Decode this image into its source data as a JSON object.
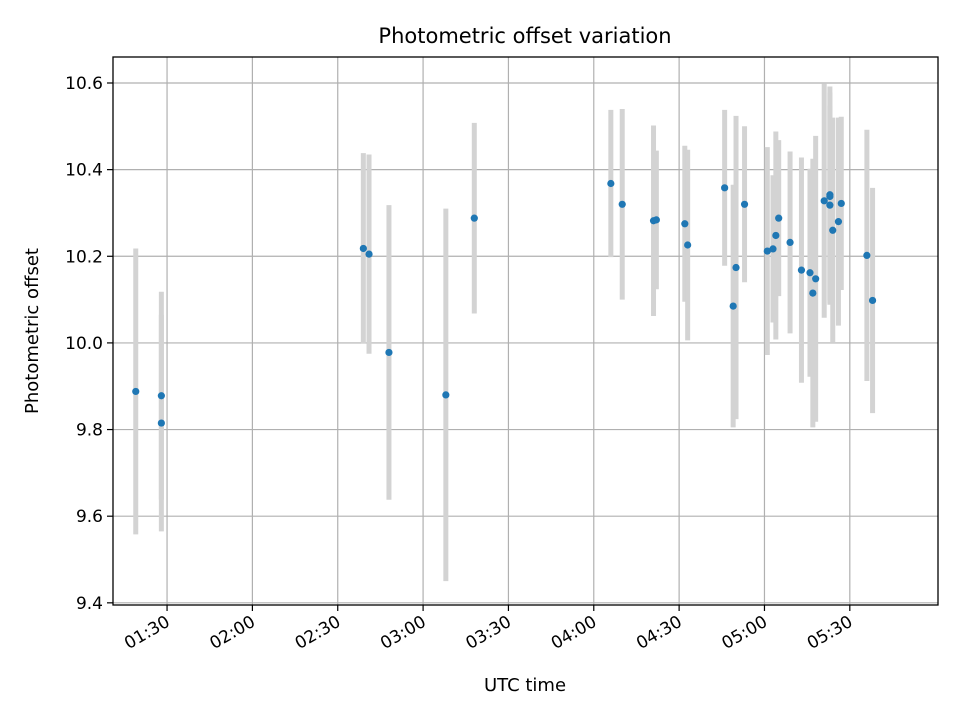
{
  "chart_data": {
    "type": "scatter",
    "title": "Photometric offset variation",
    "xlabel": "UTC time",
    "ylabel": "Photometric offset",
    "x_ticks": [
      "01:30",
      "02:00",
      "02:30",
      "03:00",
      "03:30",
      "04:00",
      "04:30",
      "05:00",
      "05:30"
    ],
    "y_ticks": [
      "9.4",
      "9.6",
      "9.8",
      "10.0",
      "10.2",
      "10.4",
      "10.6"
    ],
    "xlim": [
      "01:11",
      "06:01"
    ],
    "ylim": [
      9.395,
      10.66
    ],
    "grid": true,
    "colors": {
      "marker": "#1f77b4",
      "errorbar": "#d3d3d3",
      "grid": "#b0b0b0"
    },
    "series": [
      {
        "points": [
          {
            "x": "01:19",
            "y": 9.888,
            "yerr": 0.33
          },
          {
            "x": "01:28",
            "y": 9.878,
            "yerr": 0.24
          },
          {
            "x": "01:28",
            "y": 9.815,
            "yerr": 0.25
          },
          {
            "x": "02:39",
            "y": 10.218,
            "yerr": 0.22
          },
          {
            "x": "02:41",
            "y": 10.205,
            "yerr": 0.23
          },
          {
            "x": "02:48",
            "y": 9.978,
            "yerr": 0.34
          },
          {
            "x": "03:08",
            "y": 9.88,
            "yerr": 0.43
          },
          {
            "x": "03:18",
            "y": 10.288,
            "yerr": 0.22
          },
          {
            "x": "04:06",
            "y": 10.368,
            "yerr": 0.17
          },
          {
            "x": "04:10",
            "y": 10.32,
            "yerr": 0.22
          },
          {
            "x": "04:21",
            "y": 10.282,
            "yerr": 0.22
          },
          {
            "x": "04:22",
            "y": 10.284,
            "yerr": 0.16
          },
          {
            "x": "04:32",
            "y": 10.275,
            "yerr": 0.18
          },
          {
            "x": "04:33",
            "y": 10.226,
            "yerr": 0.22
          },
          {
            "x": "04:46",
            "y": 10.358,
            "yerr": 0.18
          },
          {
            "x": "04:49",
            "y": 10.085,
            "yerr": 0.28
          },
          {
            "x": "04:50",
            "y": 10.174,
            "yerr": 0.35
          },
          {
            "x": "04:53",
            "y": 10.32,
            "yerr": 0.18
          },
          {
            "x": "05:01",
            "y": 10.212,
            "yerr": 0.24
          },
          {
            "x": "05:03",
            "y": 10.217,
            "yerr": 0.17
          },
          {
            "x": "05:04",
            "y": 10.248,
            "yerr": 0.24
          },
          {
            "x": "05:05",
            "y": 10.288,
            "yerr": 0.18
          },
          {
            "x": "05:09",
            "y": 10.232,
            "yerr": 0.21
          },
          {
            "x": "05:13",
            "y": 10.168,
            "yerr": 0.26
          },
          {
            "x": "05:16",
            "y": 10.162,
            "yerr": 0.24
          },
          {
            "x": "05:17",
            "y": 10.115,
            "yerr": 0.31
          },
          {
            "x": "05:18",
            "y": 10.148,
            "yerr": 0.33
          },
          {
            "x": "05:21",
            "y": 10.328,
            "yerr": 0.27
          },
          {
            "x": "05:23",
            "y": 10.342,
            "yerr": 0.25
          },
          {
            "x": "05:23",
            "y": 10.338,
            "yerr": 0.24
          },
          {
            "x": "05:23",
            "y": 10.318,
            "yerr": 0.23
          },
          {
            "x": "05:24",
            "y": 10.26,
            "yerr": 0.26
          },
          {
            "x": "05:26",
            "y": 10.28,
            "yerr": 0.24
          },
          {
            "x": "05:27",
            "y": 10.322,
            "yerr": 0.2
          },
          {
            "x": "05:36",
            "y": 10.202,
            "yerr": 0.29
          },
          {
            "x": "05:38",
            "y": 10.098,
            "yerr": 0.26
          }
        ]
      }
    ]
  }
}
